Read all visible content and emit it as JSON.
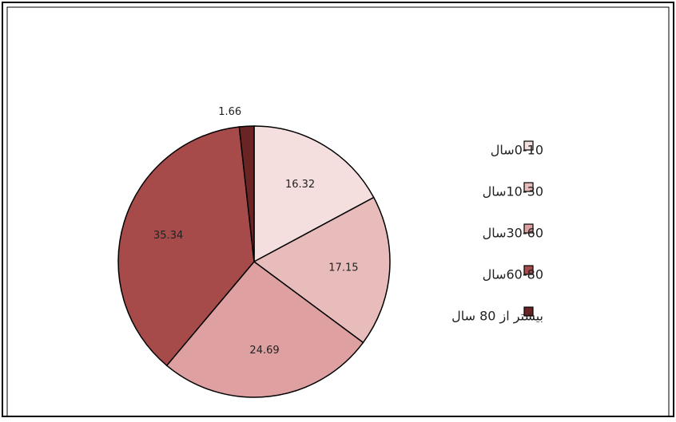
{
  "chart_data": {
    "type": "pie",
    "categories": [
      "0-10سال",
      "10-30سال",
      "30-60سال",
      "60-80سال",
      "بیشتر از 80 سال"
    ],
    "values": [
      16.32,
      17.15,
      24.69,
      35.34,
      1.66
    ],
    "colors": [
      "#f4dede",
      "#e9bcbc",
      "#dea0a0",
      "#a64a4a",
      "#6b2424"
    ]
  }
}
